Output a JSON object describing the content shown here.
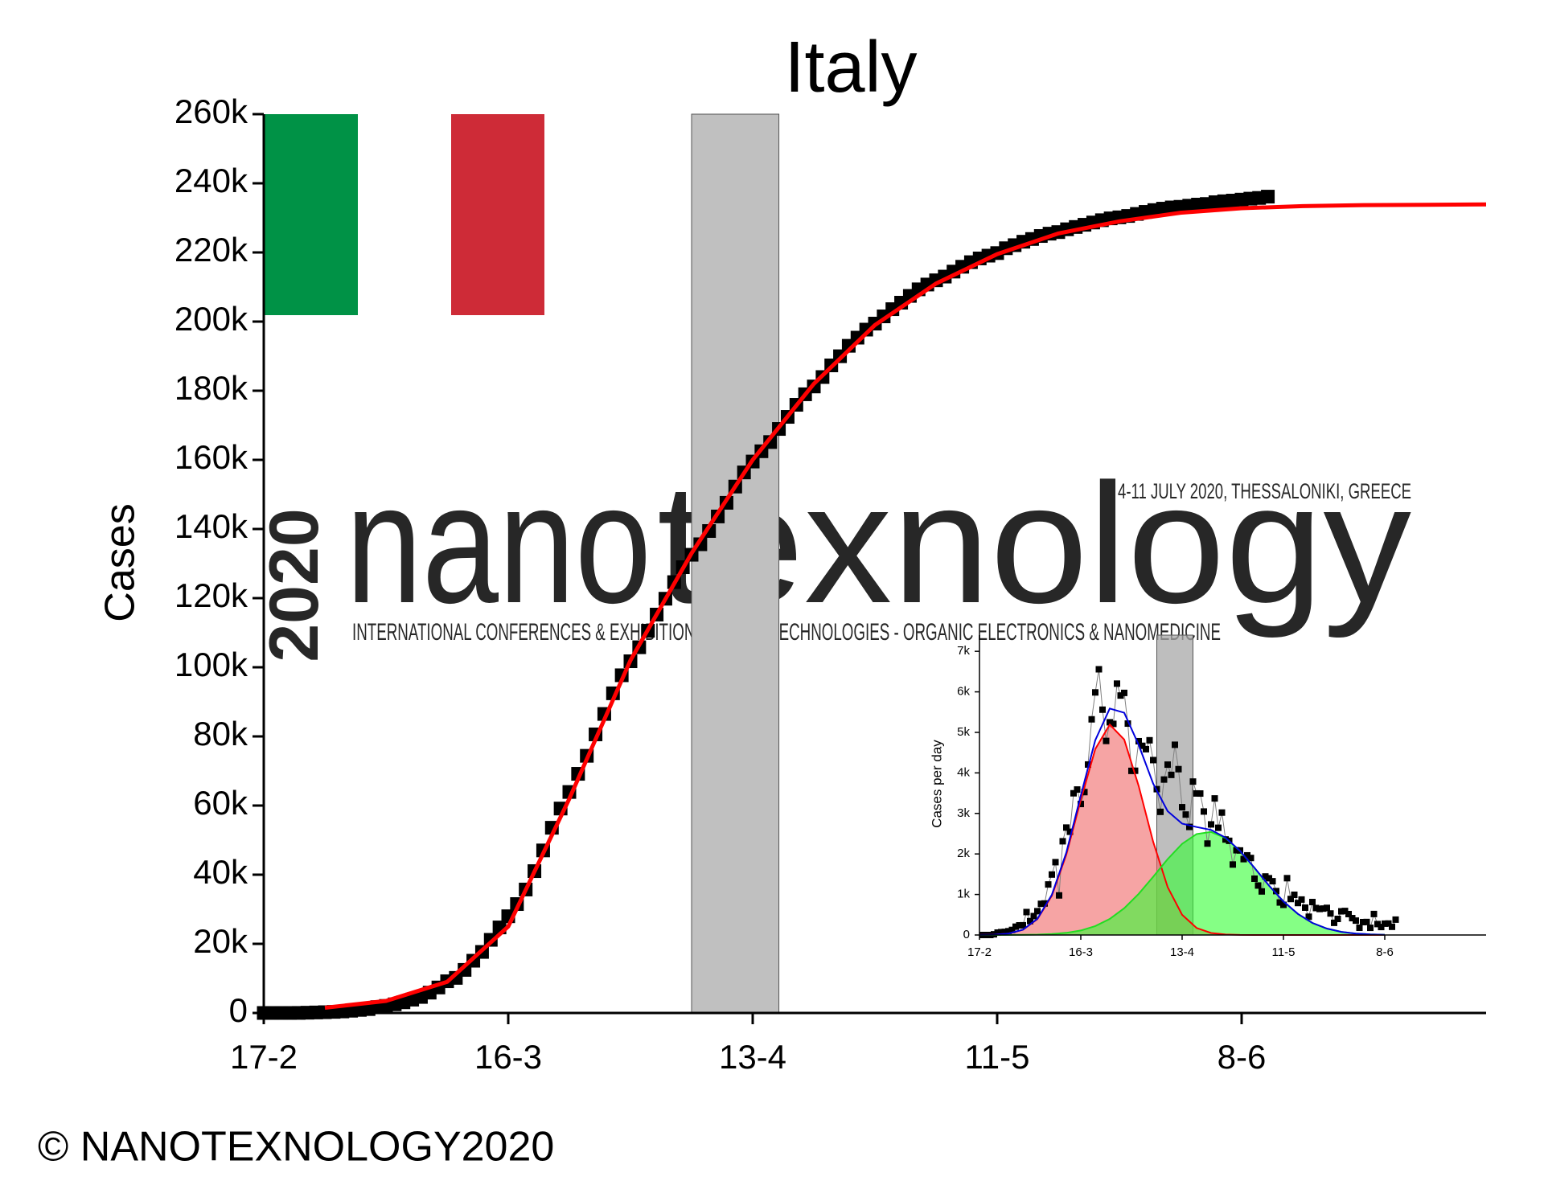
{
  "chart_data": [
    {
      "type": "scatter",
      "title": "Italy",
      "ylabel": "Cases",
      "xlim": [
        0,
        140
      ],
      "ylim": [
        0,
        260000
      ],
      "xticks": [
        {
          "value": 0,
          "label": "17-2"
        },
        {
          "value": 28,
          "label": "16-3"
        },
        {
          "value": 56,
          "label": "13-4"
        },
        {
          "value": 84,
          "label": "11-5"
        },
        {
          "value": 112,
          "label": "8-6"
        }
      ],
      "yticks": [
        0,
        {
          "value": 20000,
          "label": "20k"
        },
        {
          "value": 40000,
          "label": "40k"
        },
        {
          "value": 60000,
          "label": "60k"
        },
        {
          "value": 80000,
          "label": "80k"
        },
        {
          "value": 100000,
          "label": "100k"
        },
        {
          "value": 120000,
          "label": "120k"
        },
        {
          "value": 140000,
          "label": "140k"
        },
        {
          "value": 160000,
          "label": "160k"
        },
        {
          "value": 180000,
          "label": "180k"
        },
        {
          "value": 200000,
          "label": "200k"
        },
        {
          "value": 220000,
          "label": "220k"
        },
        {
          "value": 240000,
          "label": "240k"
        },
        {
          "value": 260000,
          "label": "260k"
        }
      ],
      "highlight": {
        "x": [
          49,
          59
        ],
        "color": "#c0c0c0"
      },
      "points": {
        "color": "#000000",
        "x": [
          0,
          1,
          2,
          3,
          4,
          5,
          6,
          7,
          8,
          9,
          10,
          11,
          12,
          13,
          14,
          15,
          16,
          17,
          18,
          19,
          20,
          21,
          22,
          23,
          24,
          25,
          26,
          27,
          28,
          29,
          30,
          31,
          32,
          33,
          34,
          35,
          36,
          37,
          38,
          39,
          40,
          41,
          42,
          43,
          44,
          45,
          46,
          47,
          48,
          49,
          50,
          51,
          52,
          53,
          54,
          55,
          56,
          57,
          58,
          59,
          60,
          61,
          62,
          63,
          64,
          65,
          66,
          67,
          68,
          69,
          70,
          71,
          72,
          73,
          74,
          75,
          76,
          77,
          78,
          79,
          80,
          81,
          82,
          83,
          84,
          85,
          86,
          87,
          88,
          89,
          90,
          91,
          92,
          93,
          94,
          95,
          96,
          97,
          98,
          99,
          100,
          101,
          102,
          103,
          104,
          105,
          106,
          107,
          108,
          109,
          110,
          111,
          112,
          113,
          114,
          115
        ],
        "values": [
          3,
          3,
          3,
          3,
          20,
          79,
          150,
          227,
          320,
          445,
          650,
          888,
          1128,
          1694,
          2036,
          2502,
          3089,
          3858,
          4636,
          5883,
          7375,
          9172,
          10149,
          12462,
          15113,
          17660,
          21157,
          24747,
          27980,
          31506,
          35713,
          41035,
          47021,
          53578,
          59138,
          63927,
          69176,
          74386,
          80589,
          86498,
          92472,
          97689,
          101739,
          105792,
          110574,
          115242,
          119827,
          124632,
          128948,
          132547,
          135586,
          139422,
          143626,
          147577,
          152271,
          156363,
          159516,
          162488,
          165155,
          168941,
          172434,
          175925,
          178972,
          181228,
          183957,
          187327,
          189973,
          192994,
          195351,
          197675,
          199414,
          201505,
          203591,
          205463,
          207428,
          209328,
          210717,
          211938,
          213013,
          214457,
          215858,
          217185,
          218268,
          219070,
          219814,
          221216,
          222104,
          223096,
          223885,
          224760,
          225435,
          225886,
          226699,
          227364,
          228006,
          228658,
          229327,
          229858,
          230158,
          230555,
          231139,
          231732,
          232248,
          232664,
          233019,
          233197,
          233515,
          233836,
          234013,
          234531,
          234801,
          234998,
          235278,
          235561,
          235763,
          236142
        ]
      },
      "fits": [
        {
          "color": "#ff0000",
          "x": [
            7,
            14,
            21,
            28,
            35,
            42,
            49,
            56,
            63,
            70,
            77,
            84,
            91,
            98,
            105,
            112,
            119,
            126,
            133,
            140
          ],
          "values": [
            1500,
            3500,
            9000,
            25000,
            62000,
            102000,
            133000,
            160000,
            182000,
            199000,
            211000,
            219500,
            225500,
            229000,
            231500,
            232800,
            233400,
            233700,
            233800,
            233900
          ]
        }
      ]
    },
    {
      "type": "scatter",
      "ylabel": "Cases per day",
      "xlim": [
        0,
        140
      ],
      "ylim": [
        0,
        7400
      ],
      "xticks": [
        {
          "value": 0,
          "label": "17-2"
        },
        {
          "value": 28,
          "label": "16-3"
        },
        {
          "value": 56,
          "label": "13-4"
        },
        {
          "value": 84,
          "label": "11-5"
        },
        {
          "value": 112,
          "label": "8-6"
        }
      ],
      "yticks": [
        0,
        {
          "value": 1000,
          "label": "1k"
        },
        {
          "value": 2000,
          "label": "2k"
        },
        {
          "value": 3000,
          "label": "3k"
        },
        {
          "value": 4000,
          "label": "4k"
        },
        {
          "value": 5000,
          "label": "5k"
        },
        {
          "value": 6000,
          "label": "6k"
        },
        {
          "value": 7000,
          "label": "7k"
        }
      ],
      "highlight": {
        "x": [
          49,
          59
        ],
        "color": "#a8a8a8"
      },
      "points": {
        "color": "#000000",
        "line_color": "#808080",
        "x": [
          1,
          2,
          3,
          4,
          5,
          6,
          7,
          8,
          9,
          10,
          11,
          12,
          13,
          14,
          15,
          16,
          17,
          18,
          19,
          20,
          21,
          22,
          23,
          24,
          25,
          26,
          27,
          28,
          29,
          30,
          31,
          32,
          33,
          34,
          35,
          36,
          37,
          38,
          39,
          40,
          41,
          42,
          43,
          44,
          45,
          46,
          47,
          48,
          49,
          50,
          51,
          52,
          53,
          54,
          55,
          56,
          57,
          58,
          59,
          60,
          61,
          62,
          63,
          64,
          65,
          66,
          67,
          68,
          69,
          70,
          71,
          72,
          73,
          74,
          75,
          76,
          77,
          78,
          79,
          80,
          81,
          82,
          83,
          84,
          85,
          86,
          87,
          88,
          89,
          90,
          91,
          92,
          93,
          94,
          95,
          96,
          97,
          98,
          99,
          100,
          101,
          102,
          103,
          104,
          105,
          106,
          107,
          108,
          109,
          110,
          111,
          112,
          113,
          114,
          115
        ],
        "values": [
          0,
          0,
          0,
          17,
          59,
          71,
          77,
          93,
          125,
          205,
          238,
          240,
          566,
          342,
          466,
          587,
          769,
          778,
          1247,
          1492,
          1797,
          977,
          2313,
          2651,
          2547,
          3497,
          3590,
          3233,
          3526,
          4207,
          5322,
          5986,
          6557,
          5560,
          4789,
          5249,
          5210,
          6203,
          5909,
          5974,
          5217,
          4050,
          4053,
          4782,
          4668,
          4585,
          4805,
          4316,
          3599,
          3039,
          3836,
          4204,
          3951,
          4694,
          4092,
          3153,
          2972,
          2667,
          3786,
          3493,
          3491,
          3047,
          2256,
          2729,
          3370,
          2646,
          3021,
          2357,
          2324,
          1739,
          2091,
          2086,
          1872,
          1965,
          1900,
          1389,
          1221,
          1075,
          1444,
          1401,
          1327,
          1083,
          802,
          744,
          1402,
          888,
          992,
          789,
          875,
          675,
          451,
          813,
          665,
          642,
          652,
          669,
          531,
          300,
          397,
          584,
          593,
          516,
          416,
          355,
          178,
          318,
          321,
          177,
          518,
          270,
          197,
          280,
          283,
          202,
          379
        ]
      },
      "fits": [
        {
          "color": "#ff0000",
          "fill": "#f06868",
          "x": [
            0,
            4,
            8,
            12,
            16,
            20,
            24,
            28,
            32,
            36,
            40,
            44,
            48,
            52,
            56,
            60,
            64,
            68,
            72,
            76,
            80,
            84,
            88,
            92,
            96,
            100,
            104,
            108,
            112
          ],
          "values": [
            1,
            8,
            35,
            128,
            390,
            968,
            1981,
            3330,
            4588,
            5192,
            4822,
            3675,
            2299,
            1182,
            497,
            172,
            49,
            11,
            2,
            0,
            0,
            0,
            0,
            0,
            0,
            0,
            0,
            0,
            0
          ]
        },
        {
          "color": "#22dd22",
          "fill": "#33ff33",
          "x": [
            0,
            4,
            8,
            12,
            16,
            20,
            24,
            28,
            32,
            36,
            40,
            44,
            48,
            52,
            56,
            60,
            64,
            68,
            72,
            76,
            80,
            84,
            88,
            92,
            96,
            100,
            104,
            108,
            112
          ],
          "values": [
            0,
            0,
            1,
            3,
            9,
            23,
            53,
            112,
            220,
            397,
            661,
            1015,
            1437,
            1873,
            2250,
            2492,
            2543,
            2392,
            2074,
            1657,
            1220,
            828,
            519,
            298,
            158,
            78,
            35,
            15,
            6
          ]
        },
        {
          "color": "#0000dd",
          "x": [
            0,
            4,
            8,
            12,
            16,
            20,
            24,
            28,
            32,
            36,
            40,
            44,
            48,
            52,
            56,
            60,
            64,
            68,
            72,
            76,
            80,
            84,
            88,
            92,
            96,
            100,
            104,
            108,
            112
          ],
          "values": [
            1,
            8,
            36,
            131,
            399,
            991,
            2034,
            3442,
            4808,
            5589,
            5483,
            4690,
            3736,
            3055,
            2747,
            2664,
            2592,
            2403,
            2076,
            1657,
            1220,
            828,
            519,
            298,
            158,
            78,
            35,
            15,
            6
          ]
        }
      ]
    }
  ],
  "watermark": {
    "year": "2020",
    "brand_a": "nano",
    "brand_b": "texnology",
    "event": "4-11 JULY 2020, THESSALONIKI, GREECE",
    "tagline": "INTERNATIONAL CONFERENCES & EXHIBITION ON NANOTECHNOLOGIES - ORGANIC ELECTRONICS & NANOMEDICINE"
  },
  "footer": {
    "copyright": "© NANOTEXNOLOGY2020"
  }
}
